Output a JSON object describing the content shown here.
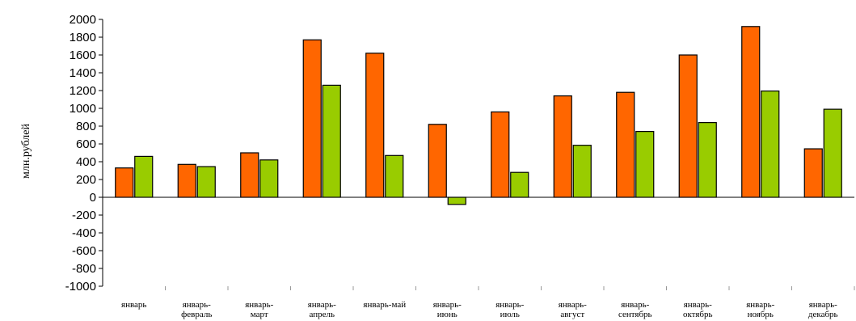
{
  "chart_data": {
    "type": "bar",
    "title": "",
    "xlabel": "",
    "ylabel": "млн.рублей",
    "ylim": [
      -1000,
      2000
    ],
    "ytick_step": 200,
    "grid": false,
    "legend": "none",
    "categories": [
      [
        "январь"
      ],
      [
        "январь-",
        "февраль"
      ],
      [
        "январь-",
        "март"
      ],
      [
        "январь-",
        "апрель"
      ],
      [
        "январь-май"
      ],
      [
        "январь-",
        "июнь"
      ],
      [
        "январь-",
        "июль"
      ],
      [
        "январь-",
        "август"
      ],
      [
        "январь-",
        "сентябрь"
      ],
      [
        "январь-",
        "октябрь"
      ],
      [
        "январь-",
        "ноябрь"
      ],
      [
        "январь-",
        "декабрь"
      ]
    ],
    "series": [
      {
        "color": "#ff6600",
        "values": [
          330,
          370,
          500,
          1770,
          1620,
          820,
          960,
          1140,
          1180,
          1600,
          1920,
          545
        ]
      },
      {
        "color": "#99cc00",
        "values": [
          460,
          345,
          420,
          1260,
          470,
          -80,
          280,
          585,
          740,
          840,
          1195,
          990
        ]
      }
    ]
  }
}
